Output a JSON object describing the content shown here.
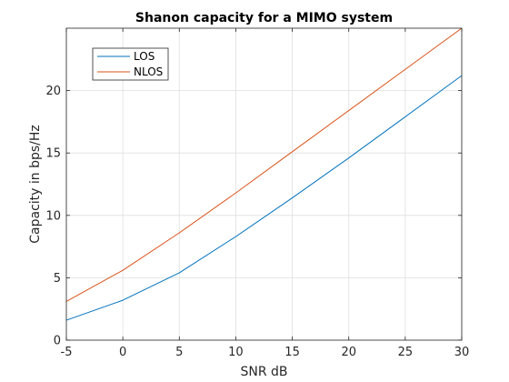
{
  "chart_data": {
    "type": "line",
    "title": "Shanon capacity for a MIMO system",
    "xlabel": "SNR dB",
    "ylabel": "Capacity in bps/Hz",
    "xlim": [
      -5,
      30
    ],
    "ylim": [
      0,
      25
    ],
    "xticks": [
      -5,
      0,
      5,
      10,
      15,
      20,
      25,
      30
    ],
    "yticks": [
      0,
      5,
      10,
      15,
      20
    ],
    "grid": true,
    "legend": "top-left",
    "x": [
      -5,
      0,
      5,
      10,
      15,
      20,
      25,
      30
    ],
    "series": [
      {
        "name": "LOS",
        "color": "#0072BD",
        "values": [
          1.6,
          3.2,
          5.4,
          8.3,
          11.4,
          14.6,
          17.9,
          21.2
        ]
      },
      {
        "name": "NLOS",
        "color": "#D95319",
        "values": [
          3.1,
          5.6,
          8.6,
          11.8,
          15.1,
          18.4,
          21.7,
          25.0
        ]
      }
    ]
  }
}
